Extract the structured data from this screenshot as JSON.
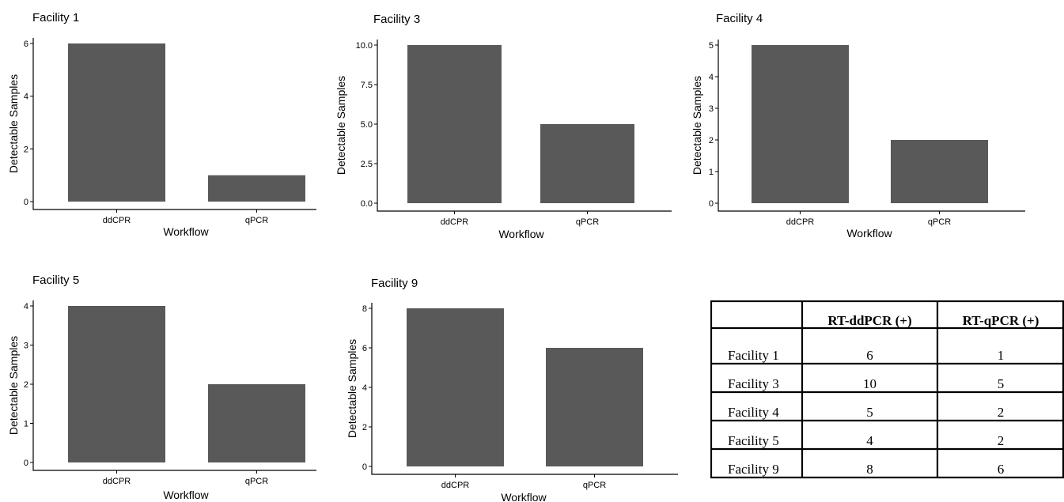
{
  "chart_data": [
    {
      "type": "bar",
      "title": "Facility 1",
      "xlabel": "Workflow",
      "ylabel": "Detectable Samples",
      "categories": [
        "ddCPR",
        "qPCR"
      ],
      "values": [
        6,
        1
      ],
      "ylim": [
        0,
        6
      ],
      "yticks": [
        "0",
        "2",
        "4",
        "6"
      ]
    },
    {
      "type": "bar",
      "title": "Facility 3",
      "xlabel": "Workflow",
      "ylabel": "Detectable Samples",
      "categories": [
        "ddCPR",
        "qPCR"
      ],
      "values": [
        10,
        5
      ],
      "ylim": [
        0,
        10
      ],
      "yticks": [
        "0.0",
        "2.5",
        "5.0",
        "7.5",
        "10.0"
      ]
    },
    {
      "type": "bar",
      "title": "Facility 4",
      "xlabel": "Workflow",
      "ylabel": "Detectable Samples",
      "categories": [
        "ddCPR",
        "qPCR"
      ],
      "values": [
        5,
        2
      ],
      "ylim": [
        0,
        5
      ],
      "yticks": [
        "0",
        "1",
        "2",
        "3",
        "4",
        "5"
      ]
    },
    {
      "type": "bar",
      "title": "Facility 5",
      "xlabel": "Workflow",
      "ylabel": "Detectable Samples",
      "categories": [
        "ddCPR",
        "qPCR"
      ],
      "values": [
        4,
        2
      ],
      "ylim": [
        0,
        4
      ],
      "yticks": [
        "0",
        "1",
        "2",
        "3",
        "4"
      ]
    },
    {
      "type": "bar",
      "title": "Facility 9",
      "xlabel": "Workflow",
      "ylabel": "Detectable Samples",
      "categories": [
        "ddCPR",
        "qPCR"
      ],
      "values": [
        8,
        6
      ],
      "ylim": [
        0,
        8
      ],
      "yticks": [
        "0",
        "2",
        "4",
        "6",
        "8"
      ]
    },
    {
      "type": "table",
      "columns": [
        "",
        "RT-ddPCR (+)",
        "RT-qPCR (+)"
      ],
      "rows": [
        [
          "Facility 1",
          "6",
          "1"
        ],
        [
          "Facility 3",
          "10",
          "5"
        ],
        [
          "Facility 4",
          "5",
          "2"
        ],
        [
          "Facility 5",
          "4",
          "2"
        ],
        [
          "Facility 9",
          "8",
          "6"
        ]
      ]
    }
  ],
  "colors": {
    "bar": "#595959",
    "axis": "#000000",
    "background": "#ffffff"
  }
}
